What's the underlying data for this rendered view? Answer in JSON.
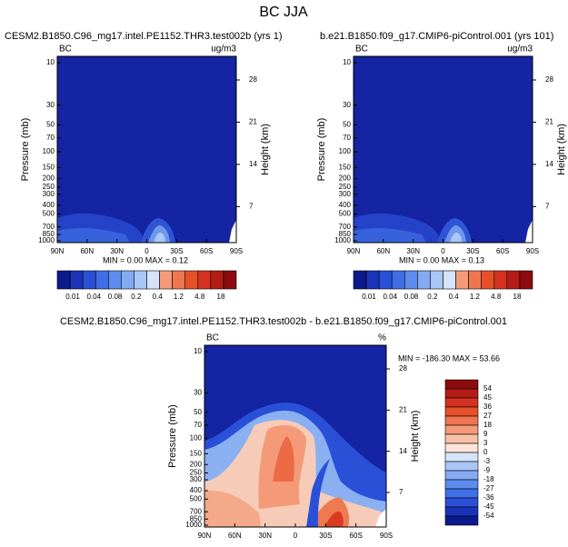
{
  "title": "BC JJA",
  "panels": [
    {
      "title": "CESM2.B1850.C96_mg17.intel.PE1152.THR3.test002b (yrs 1)",
      "left_label": "BC",
      "right_label": "ug/m3",
      "y_axis_label": "Pressure (mb)",
      "y2_axis_label": "Height (km)",
      "yticks": [
        10,
        30,
        50,
        70,
        100,
        150,
        200,
        250,
        300,
        400,
        500,
        700,
        850,
        1000
      ],
      "y2ticks": [
        28,
        21,
        14,
        7
      ],
      "xticks": [
        "90N",
        "60N",
        "30N",
        "0",
        "30S",
        "60S",
        "90S"
      ],
      "stats": "MIN =  0.00   MAX =  0.12",
      "colorbar": {
        "labels": [
          0.01,
          0.04,
          0.08,
          0.2,
          0.4,
          1.2,
          4.8,
          18
        ]
      }
    },
    {
      "title": "b.e21.B1850.f09_g17.CMIP6-piControl.001 (yrs 101)",
      "left_label": "BC",
      "right_label": "ug/m3",
      "y_axis_label": "Pressure (mb)",
      "y2_axis_label": "Height (km)",
      "yticks": [
        10,
        30,
        50,
        70,
        100,
        150,
        200,
        250,
        300,
        400,
        500,
        700,
        850,
        1000
      ],
      "y2ticks": [
        28,
        21,
        14,
        7
      ],
      "xticks": [
        "90N",
        "60N",
        "30N",
        "0",
        "30S",
        "60S",
        "90S"
      ],
      "stats": "MIN =  0.00   MAX =  0.13",
      "colorbar": {
        "labels": [
          0.01,
          0.04,
          0.08,
          0.2,
          0.4,
          1.2,
          4.8,
          18
        ]
      }
    },
    {
      "title": "CESM2.B1850.C96_mg17.intel.PE1152.THR3.test002b - b.e21.B1850.f09_g17.CMIP6-piControl.001",
      "left_label": "BC",
      "right_label": "%",
      "y_axis_label": "Pressure (mb)",
      "y2_axis_label": "Height (km)",
      "yticks": [
        10,
        30,
        50,
        70,
        100,
        150,
        200,
        250,
        300,
        400,
        500,
        700,
        850,
        1000
      ],
      "y2ticks": [
        28,
        21,
        14,
        7
      ],
      "xticks": [
        "90N",
        "60N",
        "30N",
        "0",
        "30S",
        "60S",
        "90S"
      ],
      "stats": "MIN = -186.30  MAX = 53.66",
      "colorbar": {
        "labels": [
          54,
          45,
          36,
          27,
          18,
          9,
          3,
          0,
          -3,
          -9,
          -18,
          -27,
          -36,
          -45,
          -54
        ]
      }
    }
  ]
}
